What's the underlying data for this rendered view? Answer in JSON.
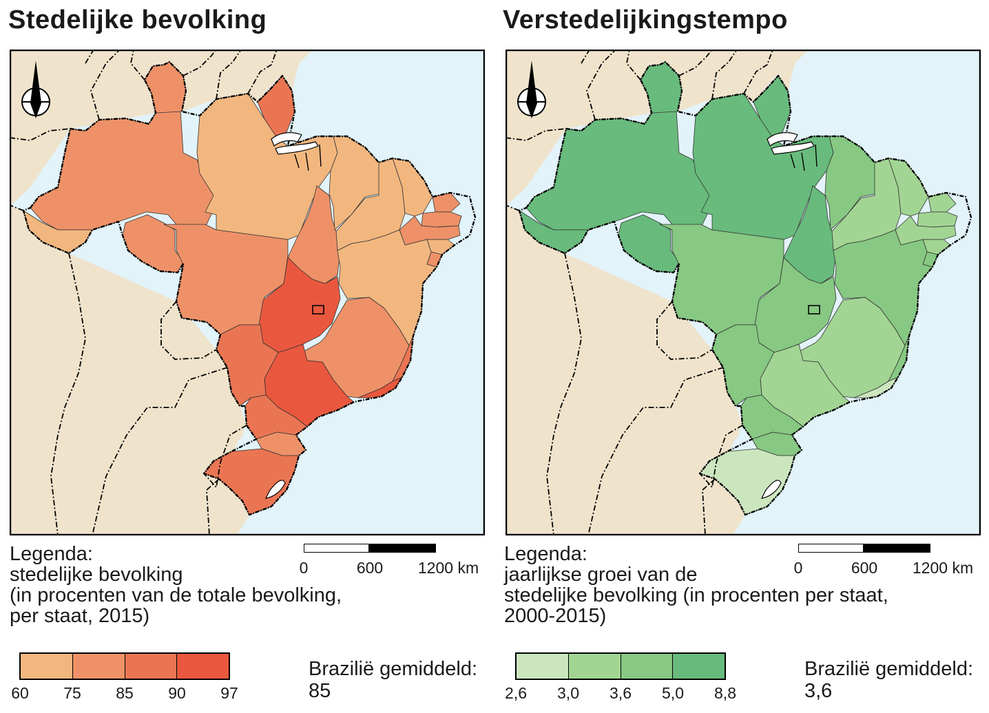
{
  "colors": {
    "ocean": "#e2f3f9",
    "land": "#efe3cc",
    "orange": [
      "#f2b77f",
      "#ee9168",
      "#ea7553",
      "#e9583e"
    ],
    "green": [
      "#cbe6bf",
      "#a2d593",
      "#87c883",
      "#68bb7c"
    ]
  },
  "left": {
    "title": "Stedelijke bevolking",
    "legend_heading": "Legenda:",
    "legend_lines": [
      "stedelijke bevolking",
      "(in procenten van de totale bevolking,",
      "per staat, 2015)"
    ],
    "class_breaks": [
      "60",
      "75",
      "85",
      "90",
      "97"
    ],
    "average_label": "Brazilië gemiddeld:",
    "average_value": "85"
  },
  "right": {
    "title": "Verstedelijkingstempo",
    "legend_heading": "Legenda:",
    "legend_lines": [
      "jaarlijkse groei van de",
      "stedelijke bevolking (in procenten per staat,",
      "2000-2015)"
    ],
    "class_breaks": [
      "2,6",
      "3,0",
      "3,6",
      "5,0",
      "8,8"
    ],
    "average_label": "Brazilië gemiddeld:",
    "average_value": "3,6"
  },
  "scale": {
    "labels": [
      "0",
      "600",
      "1200 km"
    ]
  }
}
